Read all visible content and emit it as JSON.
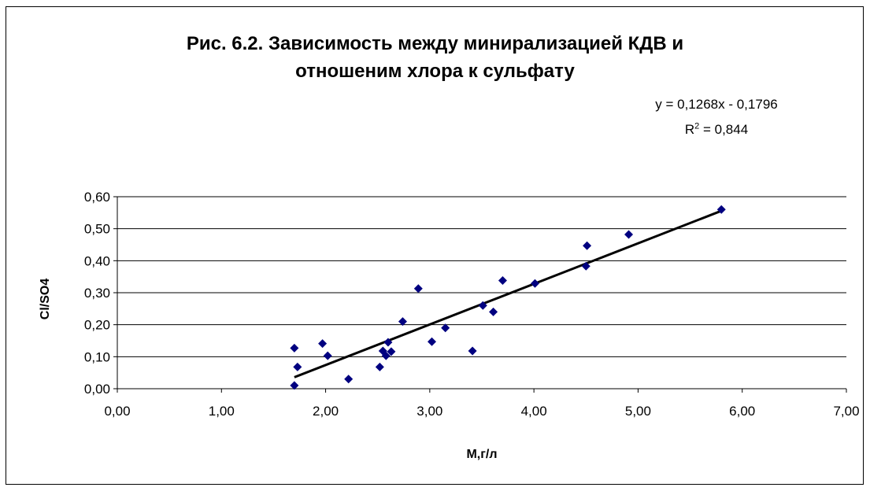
{
  "chart_data": {
    "type": "scatter",
    "title_lines": [
      "Рис.  6.2. Зависимость между минирализацией КДВ и",
      "отношеним хлора к сульфату"
    ],
    "xlabel": "М,г/л",
    "ylabel": "Cl/SO4",
    "xlim": [
      0,
      7
    ],
    "ylim": [
      0,
      0.6
    ],
    "x_ticks": [
      "0,00",
      "1,00",
      "2,00",
      "3,00",
      "4,00",
      "5,00",
      "6,00",
      "7,00"
    ],
    "y_ticks": [
      "0,00",
      "0,10",
      "0,20",
      "0,30",
      "0,40",
      "0,50",
      "0,60"
    ],
    "y_grid": true,
    "marker_color": "#000080",
    "trendline": {
      "equation": "y = 0,1268x - 0,1796",
      "r2_prefix": "R",
      "r2_sup": "2",
      "r2_value": " = 0,844",
      "slope": 0.1268,
      "intercept": -0.1796,
      "x_range": [
        1.7,
        5.8
      ],
      "color": "#000000"
    },
    "points": [
      [
        1.7,
        0.127
      ],
      [
        1.7,
        0.01
      ],
      [
        1.73,
        0.068
      ],
      [
        1.97,
        0.141
      ],
      [
        2.02,
        0.103
      ],
      [
        2.22,
        0.03
      ],
      [
        2.52,
        0.068
      ],
      [
        2.55,
        0.118
      ],
      [
        2.58,
        0.103
      ],
      [
        2.6,
        0.145
      ],
      [
        2.63,
        0.116
      ],
      [
        2.74,
        0.21
      ],
      [
        2.89,
        0.313
      ],
      [
        3.02,
        0.147
      ],
      [
        3.15,
        0.19
      ],
      [
        3.41,
        0.118
      ],
      [
        3.51,
        0.26
      ],
      [
        3.61,
        0.24
      ],
      [
        3.7,
        0.338
      ],
      [
        4.01,
        0.329
      ],
      [
        4.5,
        0.383
      ],
      [
        4.51,
        0.447
      ],
      [
        4.91,
        0.482
      ],
      [
        5.8,
        0.56
      ]
    ]
  }
}
